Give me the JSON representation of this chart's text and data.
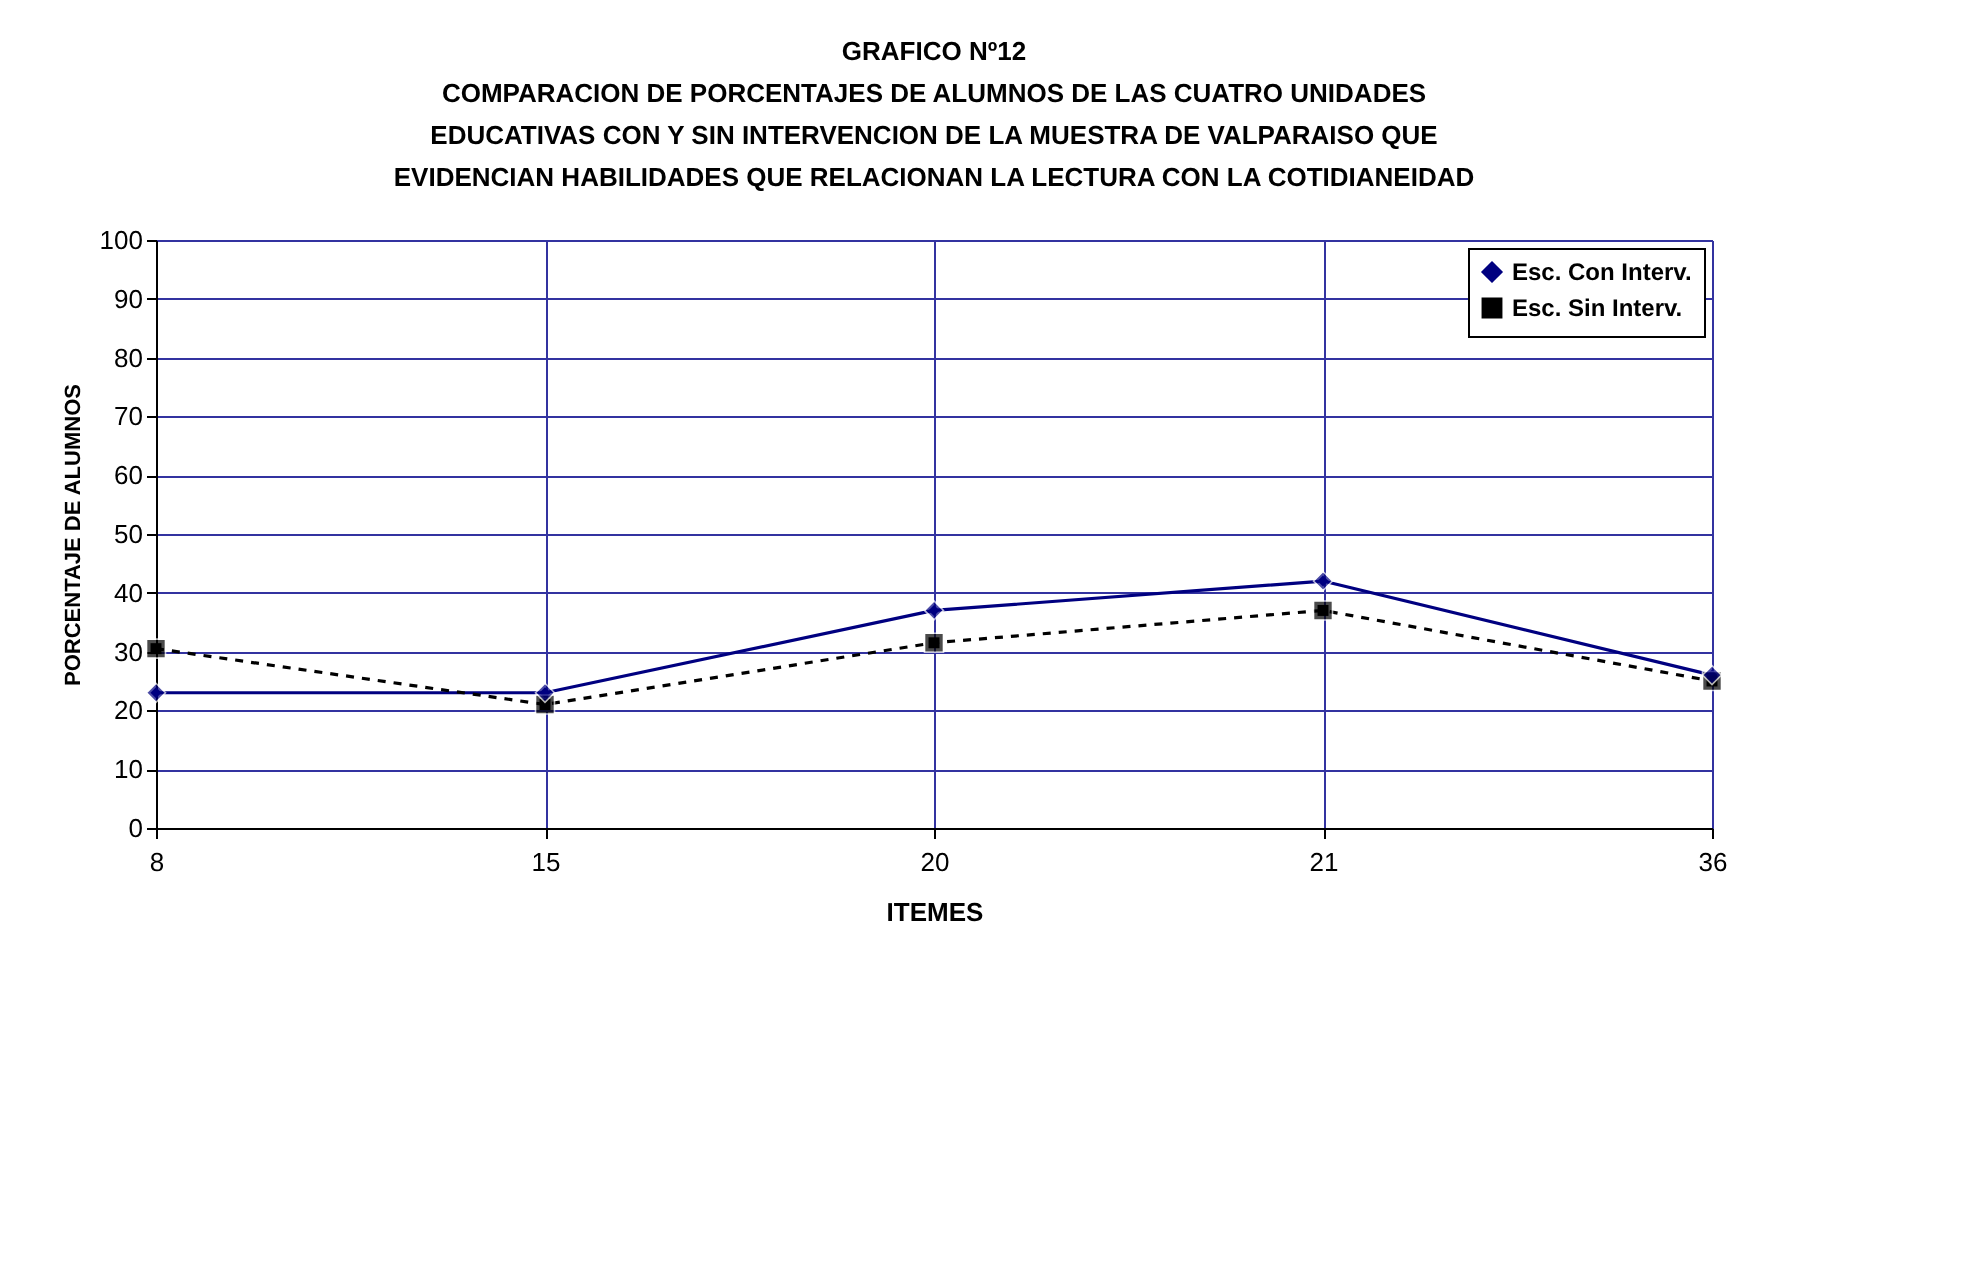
{
  "chart_data": {
    "type": "line",
    "title": "GRAFICO Nº12",
    "subtitle": "COMPARACION DE PORCENTAJES DE ALUMNOS DE LAS CUATRO UNIDADES\nEDUCATIVAS CON Y SIN INTERVENCION DE LA MUESTRA DE VALPARAISO QUE\nEVIDENCIAN HABILIDADES QUE RELACIONAN LA LECTURA CON LA COTIDIANEIDAD",
    "xlabel": "ITEMES",
    "ylabel": "PORCENTAJE DE ALUMNOS",
    "categories": [
      "8",
      "15",
      "20",
      "21",
      "36"
    ],
    "series": [
      {
        "name": "Esc. Con Interv.",
        "color": "#000080",
        "marker": "diamond",
        "line_style": "solid",
        "values": [
          23,
          23,
          37,
          42,
          26
        ]
      },
      {
        "name": "Esc. Sin Interv.",
        "color": "#000000",
        "marker": "square",
        "line_style": "dashed",
        "values": [
          30.5,
          21,
          31.5,
          37,
          25
        ]
      }
    ],
    "ylim": [
      0,
      100
    ],
    "yticks": [
      0,
      10,
      20,
      30,
      40,
      50,
      60,
      70,
      80,
      90,
      100
    ],
    "grid": true,
    "legend": "top right"
  }
}
